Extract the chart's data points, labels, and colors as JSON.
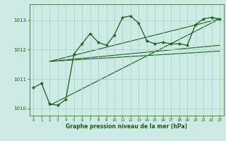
{
  "x": [
    0,
    1,
    2,
    3,
    4,
    5,
    6,
    7,
    8,
    9,
    10,
    11,
    12,
    13,
    14,
    15,
    16,
    17,
    18,
    19,
    20,
    21,
    22,
    23
  ],
  "pressure": [
    1010.7,
    1010.85,
    1010.15,
    1010.1,
    1010.3,
    1011.85,
    1012.2,
    1012.55,
    1012.25,
    1012.15,
    1012.5,
    1013.1,
    1013.15,
    1012.9,
    1012.3,
    1012.2,
    1012.25,
    1012.2,
    1012.2,
    1012.15,
    1012.85,
    1013.05,
    1013.1,
    1013.05
  ],
  "trend_lines": [
    {
      "x": [
        2,
        23
      ],
      "y": [
        1011.6,
        1013.05
      ]
    },
    {
      "x": [
        2,
        23
      ],
      "y": [
        1011.6,
        1012.15
      ]
    },
    {
      "x": [
        2,
        23
      ],
      "y": [
        1010.1,
        1013.05
      ]
    },
    {
      "x": [
        2,
        23
      ],
      "y": [
        1011.6,
        1011.95
      ]
    }
  ],
  "ylim": [
    1009.75,
    1013.55
  ],
  "yticks": [
    1010,
    1011,
    1012,
    1013
  ],
  "xlim": [
    -0.5,
    23.5
  ],
  "xlabel": "Graphe pression niveau de la mer (hPa)",
  "bg_color": "#ceeae4",
  "line_color": "#1a5c1a",
  "grid_color": "#a8d5cc",
  "figsize": [
    3.2,
    2.0
  ],
  "dpi": 100
}
